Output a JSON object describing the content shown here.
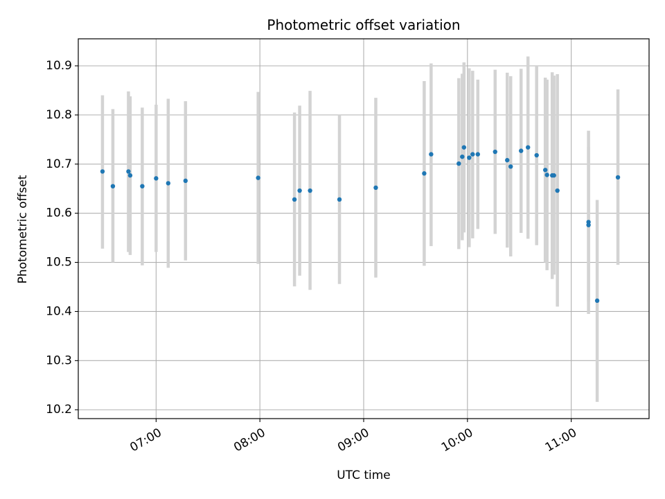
{
  "chart_data": {
    "type": "scatter",
    "title": "Photometric offset variation",
    "xlabel": "UTC time",
    "ylabel": "Photometric offset",
    "x_axis_type": "time",
    "xlim": [
      "06:15",
      "11:45"
    ],
    "ylim": [
      10.182,
      10.955
    ],
    "x_ticks": [
      "07:00",
      "08:00",
      "09:00",
      "10:00",
      "11:00"
    ],
    "y_ticks": [
      10.2,
      10.3,
      10.4,
      10.5,
      10.6,
      10.7,
      10.8,
      10.9
    ],
    "y_tick_labels": [
      "10.2",
      "10.3",
      "10.4",
      "10.5",
      "10.6",
      "10.7",
      "10.8",
      "10.9"
    ],
    "grid": true,
    "legend": "none",
    "colors": {
      "marker": "#1f77b4",
      "errorbar": "#d3d3d3",
      "grid": "#b0b0b0",
      "axes": "#000000"
    },
    "points": [
      {
        "t": "06:29",
        "y": 10.685,
        "lo": 10.528,
        "hi": 10.84
      },
      {
        "t": "06:35",
        "y": 10.655,
        "lo": 10.5,
        "hi": 10.812
      },
      {
        "t": "06:44",
        "y": 10.685,
        "lo": 10.521,
        "hi": 10.848
      },
      {
        "t": "06:45",
        "y": 10.677,
        "lo": 10.515,
        "hi": 10.838
      },
      {
        "t": "06:52",
        "y": 10.655,
        "lo": 10.494,
        "hi": 10.815
      },
      {
        "t": "07:00",
        "y": 10.671,
        "lo": 10.521,
        "hi": 10.821
      },
      {
        "t": "07:07",
        "y": 10.661,
        "lo": 10.489,
        "hi": 10.833
      },
      {
        "t": "07:17",
        "y": 10.666,
        "lo": 10.504,
        "hi": 10.828
      },
      {
        "t": "07:59",
        "y": 10.672,
        "lo": 10.497,
        "hi": 10.847
      },
      {
        "t": "08:20",
        "y": 10.628,
        "lo": 10.451,
        "hi": 10.805
      },
      {
        "t": "08:23",
        "y": 10.646,
        "lo": 10.473,
        "hi": 10.819
      },
      {
        "t": "08:29",
        "y": 10.646,
        "lo": 10.444,
        "hi": 10.849
      },
      {
        "t": "08:46",
        "y": 10.628,
        "lo": 10.456,
        "hi": 10.8
      },
      {
        "t": "09:07",
        "y": 10.652,
        "lo": 10.469,
        "hi": 10.835
      },
      {
        "t": "09:35",
        "y": 10.681,
        "lo": 10.493,
        "hi": 10.869
      },
      {
        "t": "09:39",
        "y": 10.72,
        "lo": 10.533,
        "hi": 10.905
      },
      {
        "t": "09:55",
        "y": 10.701,
        "lo": 10.527,
        "hi": 10.875
      },
      {
        "t": "09:57",
        "y": 10.715,
        "lo": 10.545,
        "hi": 10.884
      },
      {
        "t": "09:58",
        "y": 10.734,
        "lo": 10.561,
        "hi": 10.907
      },
      {
        "t": "10:01",
        "y": 10.713,
        "lo": 10.531,
        "hi": 10.895
      },
      {
        "t": "10:03",
        "y": 10.72,
        "lo": 10.549,
        "hi": 10.89
      },
      {
        "t": "10:06",
        "y": 10.72,
        "lo": 10.568,
        "hi": 10.872
      },
      {
        "t": "10:16",
        "y": 10.725,
        "lo": 10.558,
        "hi": 10.892
      },
      {
        "t": "10:23",
        "y": 10.708,
        "lo": 10.53,
        "hi": 10.886
      },
      {
        "t": "10:25",
        "y": 10.695,
        "lo": 10.512,
        "hi": 10.879
      },
      {
        "t": "10:31",
        "y": 10.727,
        "lo": 10.56,
        "hi": 10.894
      },
      {
        "t": "10:35",
        "y": 10.734,
        "lo": 10.548,
        "hi": 10.919
      },
      {
        "t": "10:40",
        "y": 10.718,
        "lo": 10.535,
        "hi": 10.9
      },
      {
        "t": "10:45",
        "y": 10.688,
        "lo": 10.5,
        "hi": 10.876
      },
      {
        "t": "10:46",
        "y": 10.678,
        "lo": 10.484,
        "hi": 10.872
      },
      {
        "t": "10:49",
        "y": 10.677,
        "lo": 10.466,
        "hi": 10.887
      },
      {
        "t": "10:50",
        "y": 10.677,
        "lo": 10.475,
        "hi": 10.88
      },
      {
        "t": "10:52",
        "y": 10.646,
        "lo": 10.41,
        "hi": 10.883
      },
      {
        "t": "11:10",
        "y": 10.582,
        "lo": 10.395,
        "hi": 10.768
      },
      {
        "t": "11:10",
        "y": 10.576,
        "lo": 10.42,
        "hi": 10.735
      },
      {
        "t": "11:15",
        "y": 10.422,
        "lo": 10.216,
        "hi": 10.627
      },
      {
        "t": "11:27",
        "y": 10.673,
        "lo": 10.495,
        "hi": 10.852
      }
    ]
  }
}
